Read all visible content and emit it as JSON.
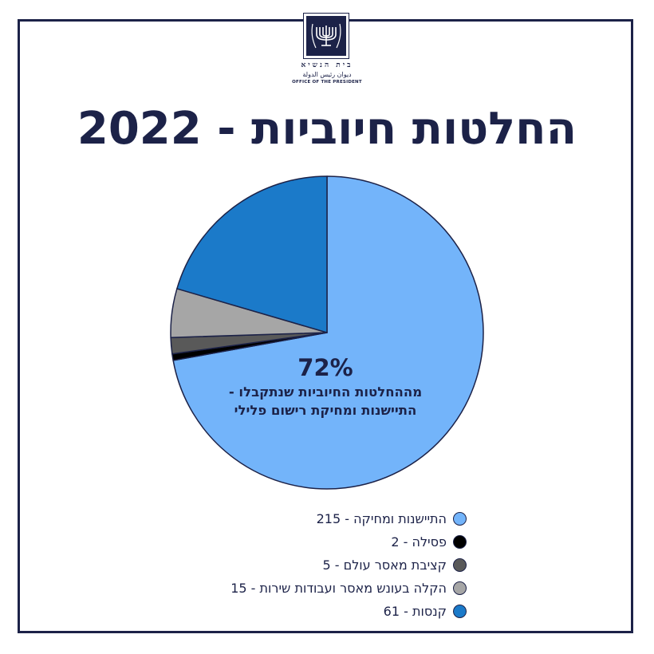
{
  "header": {
    "logo_he": "בית הנשיא",
    "logo_ar": "ديوان رئيس الدولة",
    "logo_en": "OFFICE OF THE PRESIDENT"
  },
  "title": "החלטות חיוביות - 2022",
  "callout": {
    "percent": "72%",
    "line1": "מההחלטות החיוביות שנתקבלו -",
    "line2": "התיישנות ומחיקת רישום פלילי"
  },
  "chart_data": {
    "type": "pie",
    "title": "החלטות חיוביות - 2022",
    "slices": [
      {
        "label": "התיישנות ומחיקה - 215",
        "value": 215,
        "color": "#73b4fa"
      },
      {
        "label": "פסילה - 2",
        "value": 2,
        "color": "#000000"
      },
      {
        "label": "קציבת מאסר עולם - 5",
        "value": 5,
        "color": "#595959"
      },
      {
        "label": "הקלה בעונש מאסר ועבודות שירות - 15",
        "value": 15,
        "color": "#a6a6a6"
      },
      {
        "label": "קנסות - 61",
        "value": 61,
        "color": "#1b7ac9"
      }
    ],
    "legend_position": "bottom"
  },
  "colors": {
    "navy": "#1c2248",
    "slice_border": "#1c2248"
  }
}
